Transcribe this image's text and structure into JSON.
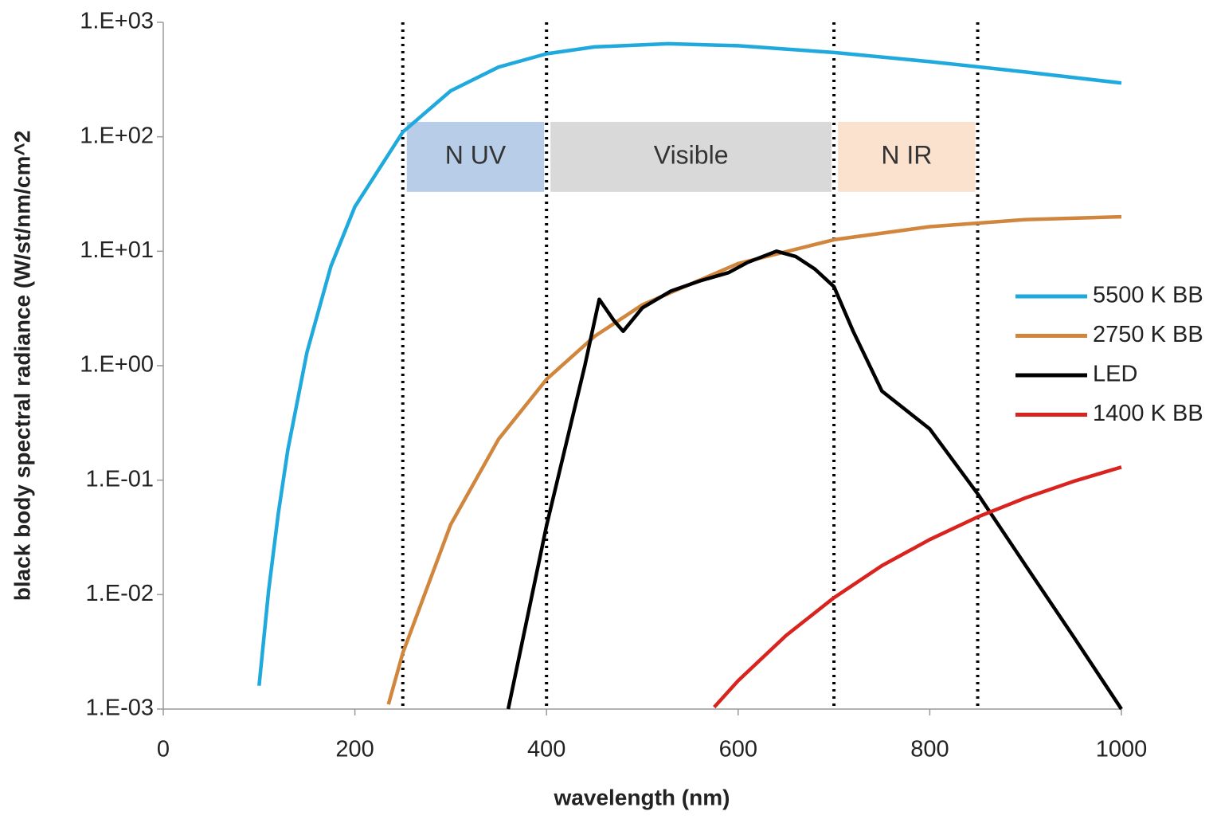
{
  "chart_data": {
    "type": "line",
    "x_label": "wavelength (nm)",
    "y_label": "black body spectral radiance  (W/st/nm/cm^2",
    "log_y": true,
    "xlim": [
      0,
      1000
    ],
    "xticks": [
      0,
      200,
      400,
      600,
      800,
      1000
    ],
    "ylim": [
      0.001,
      1000
    ],
    "yticks": [
      {
        "value": 0.001,
        "label": "1.E-03"
      },
      {
        "value": 0.01,
        "label": "1.E-02"
      },
      {
        "value": 0.1,
        "label": "1.E-01"
      },
      {
        "value": 1,
        "label": "1.E+00"
      },
      {
        "value": 10,
        "label": "1.E+01"
      },
      {
        "value": 100,
        "label": "1.E+02"
      },
      {
        "value": 1000,
        "label": "1.E+03"
      }
    ],
    "legend": "right",
    "vlines": [
      250,
      400,
      700,
      850
    ],
    "regions": [
      {
        "label": "N UV",
        "x": [
          250,
          400
        ],
        "y": [
          33,
          135
        ],
        "color": "#b8cde8"
      },
      {
        "label": "Visible",
        "x": [
          400,
          700
        ],
        "y": [
          33,
          135
        ],
        "color": "#d9d9d9"
      },
      {
        "label": "N IR",
        "x": [
          700,
          850
        ],
        "y": [
          33,
          135
        ],
        "color": "#fbe2cf"
      }
    ],
    "series": [
      {
        "name": "5500 K BB",
        "color": "#1fa9dc",
        "x": [
          100,
          110,
          120,
          130,
          150,
          175,
          200,
          250,
          300,
          350,
          400,
          450,
          527,
          600,
          700,
          800,
          850,
          900,
          1000
        ],
        "values": [
          0.0016,
          0.0109,
          0.051,
          0.184,
          1.31,
          7.4,
          24.5,
          110,
          252,
          406,
          531,
          609,
          650,
          624,
          545,
          453,
          409,
          368,
          295
        ]
      },
      {
        "name": "2750 K BB",
        "color": "#d0863d",
        "x": [
          235,
          250,
          300,
          350,
          400,
          450,
          500,
          600,
          700,
          800,
          900,
          1000
        ],
        "values": [
          0.0011,
          0.0031,
          0.041,
          0.228,
          0.76,
          1.8,
          3.4,
          7.8,
          12.6,
          16.4,
          18.9,
          20
        ]
      },
      {
        "name": "LED",
        "color": "#000000",
        "x": [
          360,
          400,
          440,
          455,
          470,
          480,
          500,
          530,
          560,
          590,
          610,
          640,
          660,
          680,
          700,
          720,
          750,
          800,
          850,
          900,
          950,
          1000
        ],
        "values": [
          0.001,
          0.04,
          1.0,
          3.8,
          2.5,
          2.0,
          3.2,
          4.5,
          5.5,
          6.5,
          8,
          10,
          9,
          7,
          4.9,
          2.0,
          0.6,
          0.28,
          0.076,
          0.018,
          0.0043,
          0.001
        ]
      },
      {
        "name": "1400 K BB",
        "color": "#d9231f",
        "x": [
          575,
          600,
          650,
          700,
          750,
          800,
          850,
          900,
          950,
          1000
        ],
        "values": [
          0.00104,
          0.00177,
          0.0044,
          0.0094,
          0.0179,
          0.0303,
          0.0477,
          0.07,
          0.0976,
          0.13
        ]
      }
    ]
  }
}
